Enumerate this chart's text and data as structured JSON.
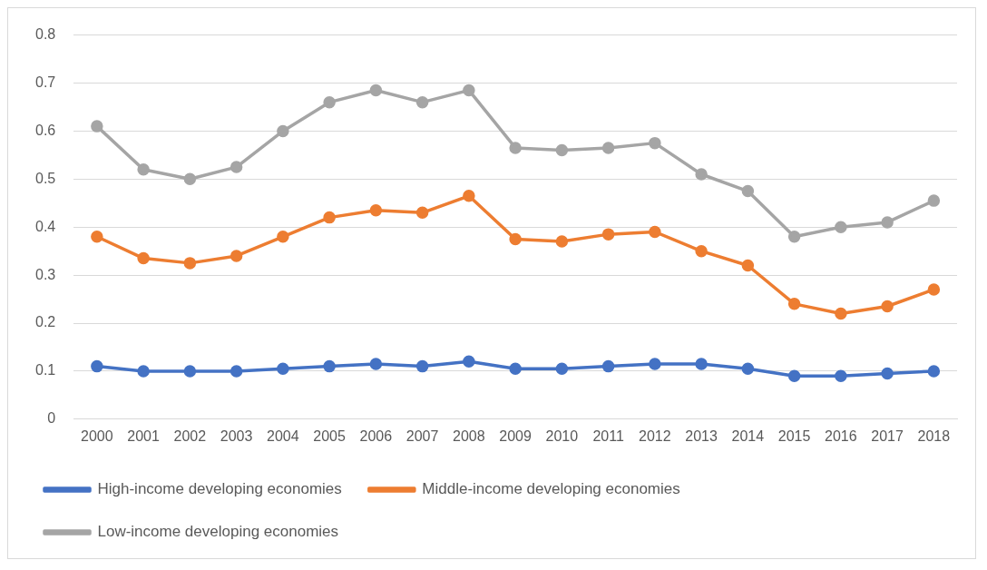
{
  "chart_data": {
    "type": "line",
    "categories": [
      "2000",
      "2001",
      "2002",
      "2003",
      "2004",
      "2005",
      "2006",
      "2007",
      "2008",
      "2009",
      "2010",
      "2011",
      "2012",
      "2013",
      "2014",
      "2015",
      "2016",
      "2017",
      "2018"
    ],
    "series": [
      {
        "name": "High-income developing economies",
        "color": "#4472c4",
        "values": [
          0.11,
          0.1,
          0.1,
          0.1,
          0.105,
          0.11,
          0.115,
          0.11,
          0.12,
          0.105,
          0.105,
          0.11,
          0.115,
          0.115,
          0.105,
          0.09,
          0.09,
          0.095,
          0.1
        ]
      },
      {
        "name": "Middle-income developing economies",
        "color": "#ed7d31",
        "values": [
          0.38,
          0.335,
          0.325,
          0.34,
          0.38,
          0.42,
          0.435,
          0.43,
          0.465,
          0.375,
          0.37,
          0.385,
          0.39,
          0.35,
          0.32,
          0.24,
          0.22,
          0.235,
          0.27
        ]
      },
      {
        "name": "Low-income developing economies",
        "color": "#a5a5a5",
        "values": [
          0.61,
          0.52,
          0.5,
          0.525,
          0.6,
          0.66,
          0.685,
          0.66,
          0.685,
          0.565,
          0.56,
          0.565,
          0.575,
          0.51,
          0.475,
          0.38,
          0.4,
          0.41,
          0.455
        ]
      }
    ],
    "ylim": [
      0,
      0.8
    ],
    "yticks": [
      0,
      0.1,
      0.2,
      0.3,
      0.4,
      0.5,
      0.6,
      0.7,
      0.8
    ],
    "grid": "y",
    "legend": "bottom",
    "marker": "circle",
    "line_style": "solid"
  }
}
